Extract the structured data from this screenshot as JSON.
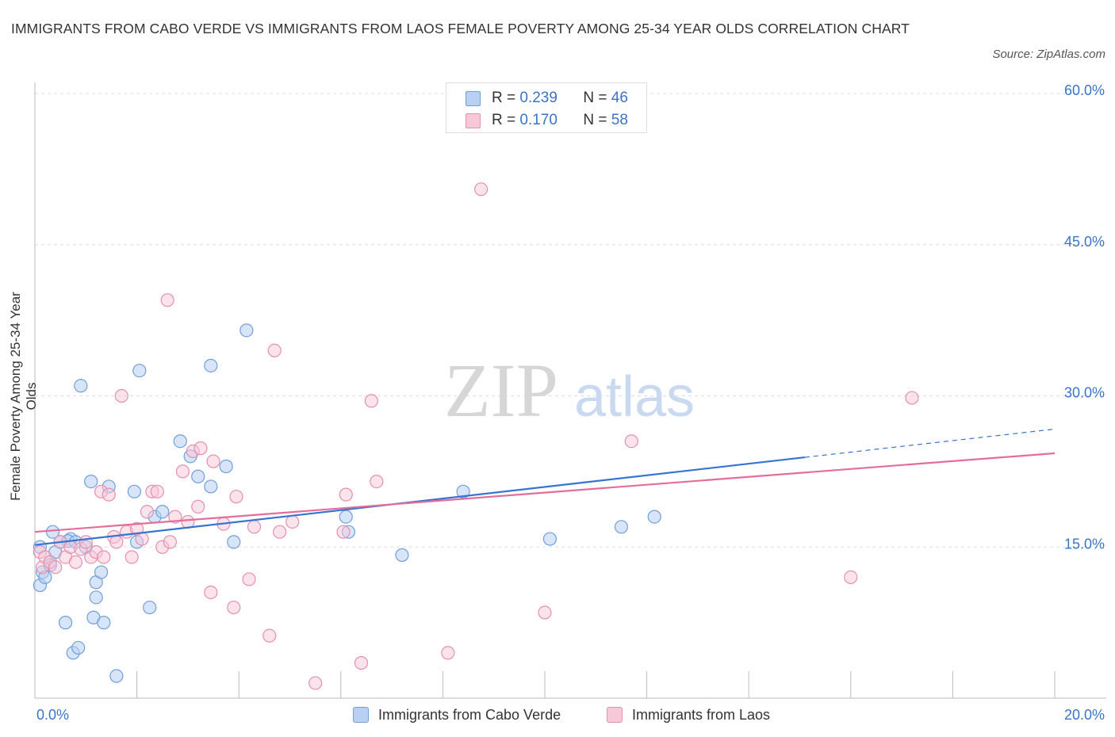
{
  "title": "IMMIGRANTS FROM CABO VERDE VS IMMIGRANTS FROM LAOS FEMALE POVERTY AMONG 25-34 YEAR OLDS CORRELATION CHART",
  "source": "Source: ZipAtlas.com",
  "watermark": {
    "zip": "ZIP",
    "atlas": "atlas"
  },
  "legend": {
    "rows": [
      {
        "r_label": "R =",
        "r_value": "0.239",
        "n_label": "N =",
        "n_value": "46"
      },
      {
        "r_label": "R =",
        "r_value": "0.170",
        "n_label": "N =",
        "n_value": "58"
      }
    ]
  },
  "bottom_legend": {
    "items": [
      "Immigrants from Cabo Verde",
      "Immigrants from Laos"
    ]
  },
  "colors": {
    "blue_fill": "#b8d0f2",
    "blue_stroke": "#6f9fdc",
    "blue_line": "#3574d1",
    "pink_fill": "#f7c8d8",
    "pink_stroke": "#e58fae",
    "pink_line": "#e46d9a",
    "tick_label": "#3a74c9",
    "grid": "#dddddd"
  },
  "chart_data": {
    "type": "scatter",
    "title": "IMMIGRANTS FROM CABO VERDE VS IMMIGRANTS FROM LAOS FEMALE POVERTY AMONG 25-34 YEAR OLDS CORRELATION CHART",
    "xlabel": "",
    "ylabel": "Female Poverty Among 25-34 Year Olds",
    "xlim": [
      0,
      20
    ],
    "ylim": [
      0,
      60
    ],
    "x_tick_labels": [
      {
        "value": 0,
        "label": "0.0%"
      },
      {
        "value": 20,
        "label": "20.0%"
      }
    ],
    "y_tick_labels": [
      {
        "value": 15,
        "label": "15.0%"
      },
      {
        "value": 30,
        "label": "30.0%"
      },
      {
        "value": 45,
        "label": "45.0%"
      },
      {
        "value": 60,
        "label": "60.0%"
      }
    ],
    "grid": true,
    "legend_position": "top-center",
    "series": [
      {
        "name": "Immigrants from Cabo Verde",
        "points": [
          [
            0.1,
            15.0
          ],
          [
            0.1,
            11.2
          ],
          [
            0.15,
            12.5
          ],
          [
            0.2,
            12.0
          ],
          [
            0.3,
            13.5
          ],
          [
            0.35,
            16.5
          ],
          [
            0.4,
            14.5
          ],
          [
            0.5,
            15.5
          ],
          [
            0.6,
            7.5
          ],
          [
            0.7,
            15.8
          ],
          [
            0.75,
            4.5
          ],
          [
            0.85,
            5.0
          ],
          [
            0.9,
            31.0
          ],
          [
            1.1,
            21.5
          ],
          [
            1.15,
            8.0
          ],
          [
            1.2,
            11.5
          ],
          [
            1.2,
            10.0
          ],
          [
            1.3,
            12.5
          ],
          [
            1.35,
            7.5
          ],
          [
            1.45,
            21.0
          ],
          [
            1.6,
            2.2
          ],
          [
            1.95,
            20.5
          ],
          [
            2.0,
            15.5
          ],
          [
            2.05,
            32.5
          ],
          [
            2.25,
            9.0
          ],
          [
            2.35,
            18.0
          ],
          [
            2.5,
            18.5
          ],
          [
            2.85,
            25.5
          ],
          [
            3.05,
            24.0
          ],
          [
            3.2,
            22.0
          ],
          [
            3.45,
            33.0
          ],
          [
            3.45,
            21.0
          ],
          [
            3.75,
            23.0
          ],
          [
            3.9,
            15.5
          ],
          [
            4.15,
            36.5
          ],
          [
            6.1,
            18.0
          ],
          [
            6.15,
            16.5
          ],
          [
            7.2,
            14.2
          ],
          [
            8.4,
            20.5
          ],
          [
            10.1,
            15.8
          ],
          [
            11.5,
            17.0
          ],
          [
            12.15,
            18.0
          ],
          [
            0.65,
            15.6
          ],
          [
            0.8,
            15.5
          ],
          [
            1.0,
            15.0
          ],
          [
            0.3,
            13.2
          ]
        ]
      },
      {
        "name": "Immigrants from Laos",
        "points": [
          [
            0.1,
            14.5
          ],
          [
            0.15,
            13.0
          ],
          [
            0.2,
            14.0
          ],
          [
            0.3,
            13.5
          ],
          [
            0.4,
            13.0
          ],
          [
            0.5,
            15.5
          ],
          [
            0.6,
            14.0
          ],
          [
            0.7,
            15.0
          ],
          [
            0.8,
            13.5
          ],
          [
            0.9,
            14.8
          ],
          [
            1.0,
            15.5
          ],
          [
            1.1,
            14.0
          ],
          [
            1.2,
            14.5
          ],
          [
            1.3,
            20.5
          ],
          [
            1.35,
            14.0
          ],
          [
            1.45,
            20.2
          ],
          [
            1.55,
            16.0
          ],
          [
            1.6,
            15.5
          ],
          [
            1.7,
            30.0
          ],
          [
            1.8,
            16.5
          ],
          [
            1.9,
            14.0
          ],
          [
            2.0,
            16.8
          ],
          [
            2.1,
            15.8
          ],
          [
            2.2,
            18.5
          ],
          [
            2.3,
            20.5
          ],
          [
            2.4,
            20.5
          ],
          [
            2.5,
            15.0
          ],
          [
            2.6,
            39.5
          ],
          [
            2.65,
            15.5
          ],
          [
            2.75,
            18.0
          ],
          [
            2.9,
            22.5
          ],
          [
            3.0,
            17.5
          ],
          [
            3.1,
            24.5
          ],
          [
            3.2,
            19.0
          ],
          [
            3.25,
            24.8
          ],
          [
            3.45,
            10.5
          ],
          [
            3.5,
            23.5
          ],
          [
            3.7,
            17.3
          ],
          [
            3.9,
            9.0
          ],
          [
            3.95,
            20.0
          ],
          [
            4.2,
            11.8
          ],
          [
            4.3,
            17.0
          ],
          [
            4.6,
            6.2
          ],
          [
            4.7,
            34.5
          ],
          [
            4.8,
            16.5
          ],
          [
            5.05,
            17.5
          ],
          [
            5.5,
            1.5
          ],
          [
            6.05,
            16.5
          ],
          [
            6.1,
            20.2
          ],
          [
            6.4,
            3.5
          ],
          [
            6.6,
            29.5
          ],
          [
            6.7,
            21.5
          ],
          [
            8.1,
            4.5
          ],
          [
            8.75,
            50.5
          ],
          [
            10.0,
            8.5
          ],
          [
            11.7,
            25.5
          ],
          [
            16.0,
            12.0
          ],
          [
            17.2,
            29.8
          ]
        ]
      }
    ],
    "trendlines": [
      {
        "series": "Immigrants from Cabo Verde",
        "x": [
          0,
          15.1
        ],
        "y": [
          15.2,
          23.9
        ],
        "dashed_extension": {
          "x": [
            15.1,
            20
          ],
          "y": [
            23.9,
            26.7
          ]
        }
      },
      {
        "series": "Immigrants from Laos",
        "x": [
          0,
          20
        ],
        "y": [
          16.5,
          24.3
        ]
      }
    ]
  }
}
